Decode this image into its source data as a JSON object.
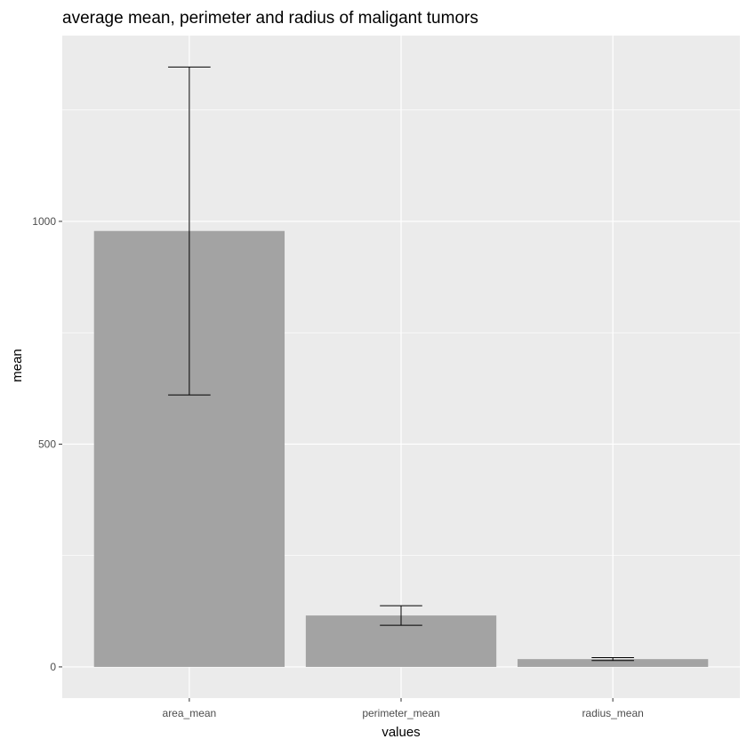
{
  "chart_data": {
    "type": "bar",
    "title": "average mean, perimeter and radius of maligant tumors",
    "xlabel": "values",
    "ylabel": "mean",
    "categories": [
      "area_mean",
      "perimeter_mean",
      "radius_mean"
    ],
    "values": [
      978.4,
      115.4,
      17.5
    ],
    "error_low": [
      610.5,
      93.4,
      14.3
    ],
    "error_high": [
      1346.3,
      137.4,
      20.7
    ],
    "ylim": [
      -70,
      1417
    ],
    "yticks": [
      0,
      500,
      1000
    ],
    "ytick_labels": [
      "0",
      "500",
      "1000"
    ],
    "grid": true,
    "legend": "none",
    "colors": {
      "panel_background": "#EBEBEB",
      "grid_line": "#FFFFFF",
      "bar_fill": "#A3A3A3",
      "error_bar": "#000000",
      "tick_label": "#4D4D4D",
      "tick_mark": "#333333"
    }
  }
}
